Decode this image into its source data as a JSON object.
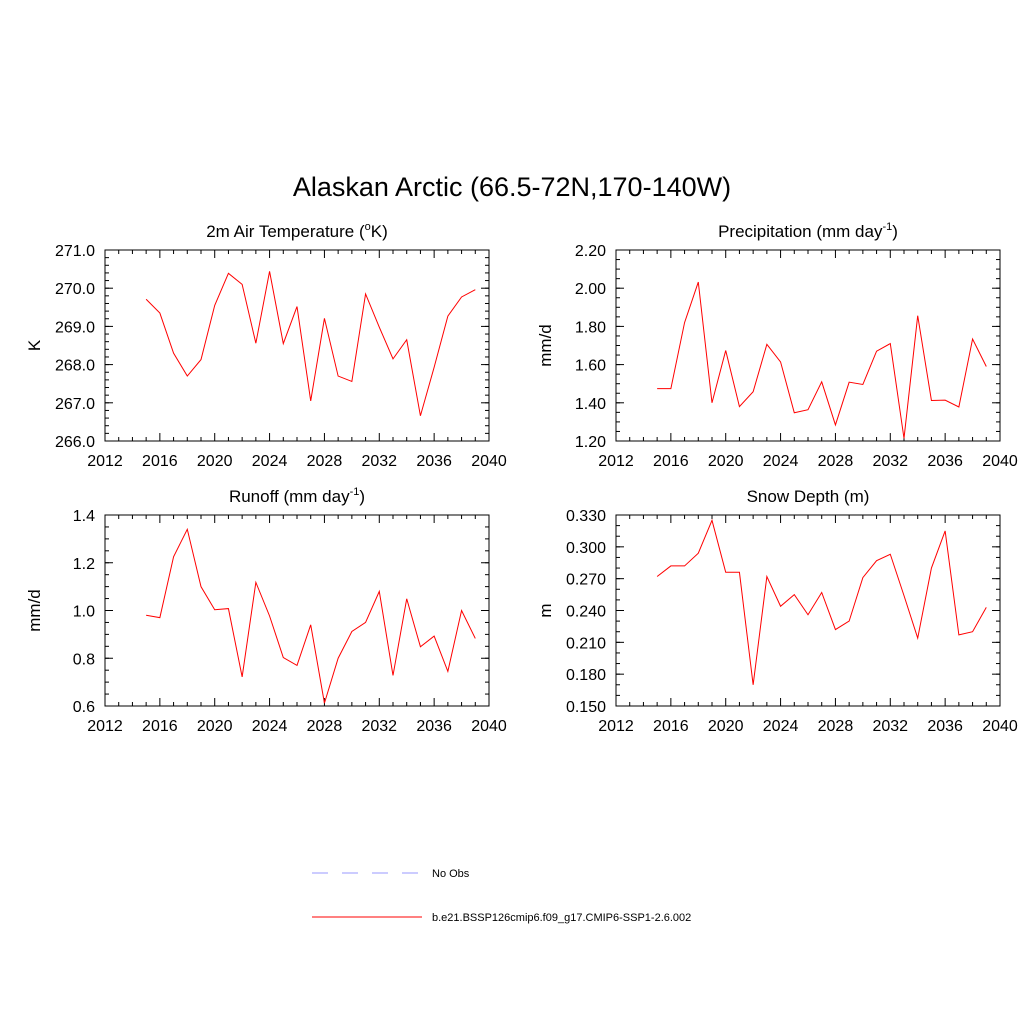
{
  "title": "Alaskan Arctic (66.5-72N,170-140W)",
  "colors": {
    "model": "#ff0000",
    "obs": "#9999ff",
    "axis": "#000000"
  },
  "legend": [
    {
      "label": "No Obs",
      "style": "dashed",
      "color": "#9999ff"
    },
    {
      "label": "b.e21.BSSP126cmip6.f09_g17.CMIP6-SSP1-2.6.002",
      "style": "solid",
      "color": "#ff0000"
    }
  ],
  "chart_data": [
    {
      "type": "line",
      "title": "2m Air Temperature (",
      "title_super": "o",
      "title_after": "K)",
      "ylabel": "K",
      "xlim": [
        2012,
        2040
      ],
      "ylim": [
        266.0,
        271.0
      ],
      "xticks": [
        2012,
        2016,
        2020,
        2024,
        2028,
        2032,
        2036,
        2040
      ],
      "yticks": [
        "266.0",
        "267.0",
        "268.0",
        "269.0",
        "270.0",
        "271.0"
      ],
      "yminor": 0.2,
      "grid": false,
      "series": [
        {
          "color": "#ff0000",
          "x": [
            2015,
            2016,
            2017,
            2018,
            2019,
            2020,
            2021,
            2022,
            2023,
            2024,
            2025,
            2026,
            2027,
            2028,
            2029,
            2030,
            2031,
            2032,
            2033,
            2034,
            2035,
            2036,
            2037,
            2038,
            2039
          ],
          "values": [
            269.71,
            269.35,
            268.3,
            267.7,
            268.13,
            269.55,
            270.39,
            270.1,
            268.56,
            270.44,
            268.55,
            269.52,
            267.05,
            269.21,
            267.7,
            267.56,
            269.85,
            268.98,
            268.15,
            268.65,
            266.66,
            267.93,
            269.27,
            269.77,
            269.96
          ]
        }
      ]
    },
    {
      "type": "line",
      "title": "Precipitation (mm day",
      "title_super": "-1",
      "title_after": ")",
      "ylabel": "mm/d",
      "xlim": [
        2012,
        2040
      ],
      "ylim": [
        1.2,
        2.2
      ],
      "xticks": [
        2012,
        2016,
        2020,
        2024,
        2028,
        2032,
        2036,
        2040
      ],
      "yticks": [
        "1.20",
        "1.40",
        "1.60",
        "1.80",
        "2.00",
        "2.20"
      ],
      "yminor": 0.05,
      "grid": false,
      "series": [
        {
          "color": "#ff0000",
          "x": [
            2015,
            2016,
            2017,
            2018,
            2019,
            2020,
            2021,
            2022,
            2023,
            2024,
            2025,
            2026,
            2027,
            2028,
            2029,
            2030,
            2031,
            2032,
            2033,
            2034,
            2035,
            2036,
            2037,
            2038,
            2039
          ],
          "values": [
            1.474,
            1.474,
            1.82,
            2.032,
            1.4,
            1.674,
            1.38,
            1.458,
            1.706,
            1.614,
            1.348,
            1.364,
            1.51,
            1.284,
            1.508,
            1.496,
            1.67,
            1.71,
            1.214,
            1.856,
            1.412,
            1.414,
            1.378,
            1.734,
            1.59
          ]
        }
      ]
    },
    {
      "type": "line",
      "title": "Runoff (mm day",
      "title_super": "-1",
      "title_after": ")",
      "ylabel": "mm/d",
      "xlim": [
        2012,
        2040
      ],
      "ylim": [
        0.6,
        1.4
      ],
      "xticks": [
        2012,
        2016,
        2020,
        2024,
        2028,
        2032,
        2036,
        2040
      ],
      "yticks": [
        "0.6",
        "0.8",
        "1.0",
        "1.2",
        "1.4"
      ],
      "yminor": 0.05,
      "grid": false,
      "series": [
        {
          "color": "#ff0000",
          "x": [
            2015,
            2016,
            2017,
            2018,
            2019,
            2020,
            2021,
            2022,
            2023,
            2024,
            2025,
            2026,
            2027,
            2028,
            2029,
            2030,
            2031,
            2032,
            2033,
            2034,
            2035,
            2036,
            2037,
            2038,
            2039
          ],
          "values": [
            0.98,
            0.97,
            1.225,
            1.34,
            1.1,
            1.003,
            1.008,
            0.722,
            1.118,
            0.977,
            0.803,
            0.77,
            0.94,
            0.612,
            0.8,
            0.912,
            0.95,
            1.08,
            0.728,
            1.049,
            0.848,
            0.893,
            0.745,
            1.0,
            0.883
          ]
        }
      ]
    },
    {
      "type": "line",
      "title": "Snow Depth (m)",
      "title_super": "",
      "title_after": "",
      "ylabel": "m",
      "xlim": [
        2012,
        2040
      ],
      "ylim": [
        0.15,
        0.33
      ],
      "xticks": [
        2012,
        2016,
        2020,
        2024,
        2028,
        2032,
        2036,
        2040
      ],
      "yticks": [
        "0.150",
        "0.180",
        "0.210",
        "0.240",
        "0.270",
        "0.300",
        "0.330"
      ],
      "yminor": 0.01,
      "grid": false,
      "series": [
        {
          "color": "#ff0000",
          "x": [
            2015,
            2016,
            2017,
            2018,
            2019,
            2020,
            2021,
            2022,
            2023,
            2024,
            2025,
            2026,
            2027,
            2028,
            2029,
            2030,
            2031,
            2032,
            2033,
            2034,
            2035,
            2036,
            2037,
            2038,
            2039
          ],
          "values": [
            0.272,
            0.282,
            0.282,
            0.294,
            0.325,
            0.276,
            0.276,
            0.17,
            0.272,
            0.244,
            0.255,
            0.236,
            0.257,
            0.222,
            0.23,
            0.271,
            0.287,
            0.293,
            0.254,
            0.214,
            0.28,
            0.315,
            0.217,
            0.22,
            0.243
          ]
        }
      ]
    }
  ]
}
